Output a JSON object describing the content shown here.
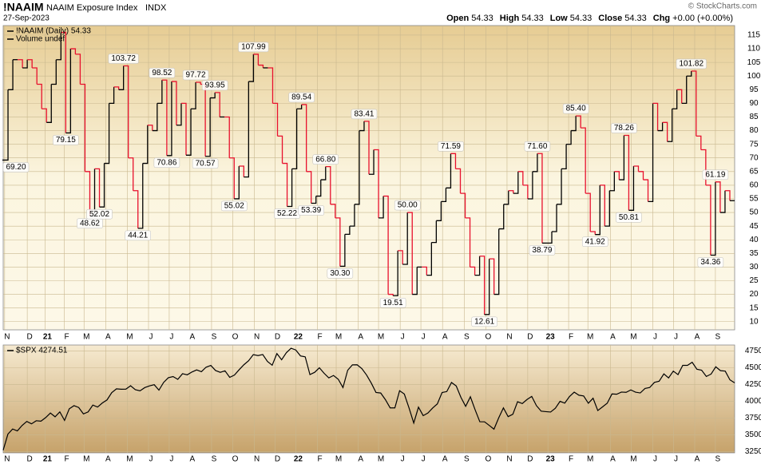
{
  "header": {
    "symbol": "!NAAIM",
    "name": "NAAIM Exposure Index",
    "exchange": "INDX",
    "date": "27-Sep-2023",
    "copyright": "© StockCharts.com",
    "quote": [
      {
        "label": "Open",
        "value": "54.33"
      },
      {
        "label": "High",
        "value": "54.33"
      },
      {
        "label": "Low",
        "value": "54.33"
      },
      {
        "label": "Close",
        "value": "54.33"
      },
      {
        "label": "Chg",
        "value": "+0.00 (+0.00%)"
      }
    ]
  },
  "chart_data": [
    {
      "type": "step_line",
      "legend": [
        "!NAAIM (Daily) 54.33",
        "Volume undef"
      ],
      "up_color": "#000000",
      "down_color": "#e8112d",
      "values": [
        69.2,
        95,
        106,
        106,
        103,
        106,
        103,
        97,
        88,
        83,
        97,
        106,
        116,
        79.15,
        110,
        108,
        97,
        65,
        48.62,
        66,
        52.02,
        68,
        90,
        96,
        95,
        103.72,
        70,
        58,
        44.21,
        68,
        82,
        80,
        90,
        98.52,
        70.86,
        98,
        82,
        90,
        71,
        88,
        97.72,
        97,
        70.57,
        92,
        93.95,
        85,
        85,
        70,
        55.02,
        67,
        63,
        98,
        107.99,
        104,
        103,
        103,
        90,
        78,
        68,
        52.22,
        66,
        88,
        89.54,
        65,
        53.39,
        56,
        62,
        66.8,
        53,
        48,
        30.3,
        42,
        45,
        53,
        80,
        83.41,
        64,
        73,
        48,
        56,
        20,
        19.51,
        36,
        31,
        50,
        20,
        30,
        30,
        27,
        39,
        47,
        54,
        59,
        71.59,
        66,
        57,
        48,
        30,
        27,
        34,
        12.61,
        33,
        20,
        44,
        53,
        58,
        57,
        65,
        60,
        55,
        65,
        71.6,
        38.79,
        38.79,
        43,
        53,
        66,
        75,
        80,
        85.4,
        81,
        57,
        43,
        41.92,
        60,
        45,
        58,
        65,
        62,
        78.26,
        50.81,
        67,
        65,
        62,
        54,
        90,
        80,
        83,
        76,
        88,
        95,
        90,
        100,
        101.82,
        78,
        73,
        60,
        34.36,
        61.19,
        50,
        58,
        54.33,
        54.33
      ],
      "value_labels": [
        "69.20",
        null,
        null,
        null,
        null,
        null,
        null,
        null,
        null,
        null,
        null,
        null,
        null,
        "79.15",
        null,
        null,
        null,
        null,
        "48.62",
        null,
        "52.02",
        null,
        null,
        null,
        null,
        "103.72",
        null,
        null,
        "44.21",
        null,
        null,
        null,
        null,
        "98.52",
        "70.86",
        null,
        null,
        null,
        null,
        null,
        "97.72",
        null,
        "70.57",
        null,
        "93.95",
        null,
        null,
        null,
        "55.02",
        null,
        null,
        null,
        "107.99",
        null,
        null,
        null,
        null,
        null,
        null,
        "52.22",
        null,
        null,
        "89.54",
        null,
        "53.39",
        null,
        null,
        "66.80",
        null,
        null,
        "30.30",
        null,
        null,
        null,
        null,
        "83.41",
        null,
        null,
        null,
        null,
        null,
        "19.51",
        null,
        null,
        "50.00",
        null,
        null,
        null,
        null,
        null,
        null,
        null,
        null,
        "71.59",
        null,
        null,
        null,
        null,
        null,
        null,
        "12.61",
        null,
        null,
        null,
        null,
        null,
        null,
        null,
        null,
        null,
        null,
        "71.60",
        "38.79",
        null,
        null,
        null,
        null,
        null,
        null,
        "85.40",
        null,
        null,
        null,
        "41.92",
        null,
        null,
        null,
        null,
        null,
        "78.26",
        "50.81",
        null,
        null,
        null,
        null,
        null,
        null,
        null,
        null,
        null,
        null,
        null,
        null,
        "101.82",
        null,
        null,
        null,
        "34.36",
        "61.19",
        null,
        null,
        null,
        null
      ],
      "xlim": [
        0,
        152
      ],
      "ylim": [
        7,
        118.5
      ],
      "yticks": [
        10,
        15,
        20,
        25,
        30,
        35,
        40,
        45,
        50,
        55,
        60,
        65,
        70,
        75,
        80,
        85,
        90,
        95,
        100,
        105,
        110,
        115
      ],
      "xticks": [
        {
          "value": 0.3,
          "label": "N"
        },
        {
          "value": 5,
          "label": "D"
        },
        {
          "value": 8.7,
          "label": "21"
        },
        {
          "value": 12.7,
          "label": "F"
        },
        {
          "value": 16.8,
          "label": "M"
        },
        {
          "value": 21.3,
          "label": "A"
        },
        {
          "value": 25.8,
          "label": "M"
        },
        {
          "value": 30.2,
          "label": "J"
        },
        {
          "value": 34.5,
          "label": "J"
        },
        {
          "value": 38.8,
          "label": "A"
        },
        {
          "value": 43.3,
          "label": "S"
        },
        {
          "value": 47.7,
          "label": "O"
        },
        {
          "value": 52.2,
          "label": "N"
        },
        {
          "value": 56.5,
          "label": "D"
        },
        {
          "value": 60.8,
          "label": "22"
        },
        {
          "value": 65.3,
          "label": "F"
        },
        {
          "value": 69.2,
          "label": "M"
        },
        {
          "value": 73.8,
          "label": "A"
        },
        {
          "value": 78,
          "label": "M"
        },
        {
          "value": 82.5,
          "label": "J"
        },
        {
          "value": 86.8,
          "label": "J"
        },
        {
          "value": 91.3,
          "label": "A"
        },
        {
          "value": 95.8,
          "label": "S"
        },
        {
          "value": 100.3,
          "label": "O"
        },
        {
          "value": 104.7,
          "label": "N"
        },
        {
          "value": 109,
          "label": "D"
        },
        {
          "value": 113.2,
          "label": "23"
        },
        {
          "value": 117.5,
          "label": "F"
        },
        {
          "value": 121.5,
          "label": "M"
        },
        {
          "value": 126.2,
          "label": "A"
        },
        {
          "value": 130.5,
          "label": "M"
        },
        {
          "value": 135,
          "label": "J"
        },
        {
          "value": 139.3,
          "label": "J"
        },
        {
          "value": 143.7,
          "label": "A"
        },
        {
          "value": 148,
          "label": "S"
        }
      ],
      "grid": true
    },
    {
      "type": "line",
      "legend": [
        "$SPX 4274.51"
      ],
      "color": "#000000",
      "values": [
        3270,
        3510,
        3585,
        3557,
        3638,
        3699,
        3663,
        3709,
        3703,
        3756,
        3824,
        3768,
        3841,
        3714,
        3887,
        3934,
        3907,
        3811,
        3841,
        3943,
        3913,
        3974,
        4020,
        4129,
        4185,
        4180,
        4181,
        4232,
        4173,
        4156,
        4204,
        4230,
        4247,
        4166,
        4281,
        4352,
        4369,
        4327,
        4411,
        4395,
        4437,
        4468,
        4441,
        4509,
        4535,
        4459,
        4432,
        4455,
        4357,
        4391,
        4471,
        4545,
        4605,
        4697,
        4682,
        4698,
        4594,
        4538,
        4712,
        4620,
        4725,
        4791,
        4766,
        4677,
        4663,
        4398,
        4432,
        4500,
        4418,
        4349,
        4385,
        4329,
        4204,
        4463,
        4543,
        4545,
        4488,
        4392,
        4271,
        4131,
        4123,
        4023,
        3901,
        3901,
        4158,
        4108,
        3900,
        3675,
        3912,
        3785,
        3825,
        3899,
        3961,
        4130,
        4145,
        4280,
        4228,
        4057,
        3924,
        4067,
        3873,
        3694,
        3693,
        3639,
        3583,
        3752,
        3901,
        3770,
        3806,
        3993,
        3965,
        4026,
        4072,
        3934,
        3852,
        3845,
        3839,
        3895,
        3999,
        3972,
        4070,
        4136,
        4090,
        4079,
        3970,
        4045,
        3861,
        3916,
        3971,
        4109,
        4105,
        4137,
        4133,
        4169,
        4136,
        4124,
        4191,
        4205,
        4282,
        4299,
        4409,
        4348,
        4450,
        4398,
        4536,
        4536,
        4582,
        4478,
        4464,
        4370,
        4406,
        4515,
        4457,
        4450,
        4320,
        4274.51
      ],
      "xlim": [
        0,
        152
      ],
      "ylim": [
        3230,
        4840
      ],
      "yticks": [
        3250,
        3500,
        3750,
        4000,
        4250,
        4500,
        4750
      ],
      "xticks": [
        {
          "value": 0.3,
          "label": "N"
        },
        {
          "value": 5,
          "label": "D"
        },
        {
          "value": 8.7,
          "label": "21"
        },
        {
          "value": 12.7,
          "label": "F"
        },
        {
          "value": 16.8,
          "label": "M"
        },
        {
          "value": 21.3,
          "label": "A"
        },
        {
          "value": 25.8,
          "label": "M"
        },
        {
          "value": 30.2,
          "label": "J"
        },
        {
          "value": 34.5,
          "label": "J"
        },
        {
          "value": 38.8,
          "label": "A"
        },
        {
          "value": 43.3,
          "label": "S"
        },
        {
          "value": 47.7,
          "label": "O"
        },
        {
          "value": 52.2,
          "label": "N"
        },
        {
          "value": 56.5,
          "label": "D"
        },
        {
          "value": 60.8,
          "label": "22"
        },
        {
          "value": 65.3,
          "label": "F"
        },
        {
          "value": 69.2,
          "label": "M"
        },
        {
          "value": 73.8,
          "label": "A"
        },
        {
          "value": 78,
          "label": "M"
        },
        {
          "value": 82.5,
          "label": "J"
        },
        {
          "value": 86.8,
          "label": "J"
        },
        {
          "value": 91.3,
          "label": "A"
        },
        {
          "value": 95.8,
          "label": "S"
        },
        {
          "value": 100.3,
          "label": "O"
        },
        {
          "value": 104.7,
          "label": "N"
        },
        {
          "value": 109,
          "label": "D"
        },
        {
          "value": 113.2,
          "label": "23"
        },
        {
          "value": 117.5,
          "label": "F"
        },
        {
          "value": 121.5,
          "label": "M"
        },
        {
          "value": 126.2,
          "label": "A"
        },
        {
          "value": 130.5,
          "label": "M"
        },
        {
          "value": 135,
          "label": "J"
        },
        {
          "value": 139.3,
          "label": "J"
        },
        {
          "value": 143.7,
          "label": "A"
        },
        {
          "value": 148,
          "label": "S"
        }
      ],
      "grid": true
    }
  ]
}
